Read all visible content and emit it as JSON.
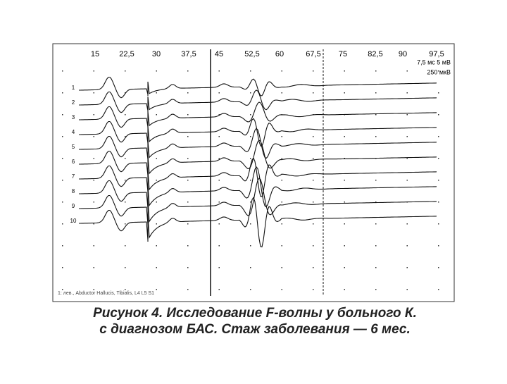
{
  "figure": {
    "time_labels": [
      "15",
      "22,5",
      "30",
      "37,5",
      "45",
      "52,5",
      "60",
      "67,5",
      "75",
      "82,5",
      "90",
      "97,5"
    ],
    "scale": [
      "7,5 мс 5 мВ",
      "250 мкВ"
    ],
    "trace_labels": [
      "1",
      "2",
      "3",
      "4",
      "5",
      "6",
      "7",
      "8",
      "9",
      "10"
    ],
    "footnote": "1: лев., Abductor Hallucis, Tibialis, L4 L5 S1"
  },
  "caption": [
    "Рисунок 4. Исследование F-волны у больного К.",
    "с диагнозом БАС. Стаж заболевания — 6 мес."
  ]
}
